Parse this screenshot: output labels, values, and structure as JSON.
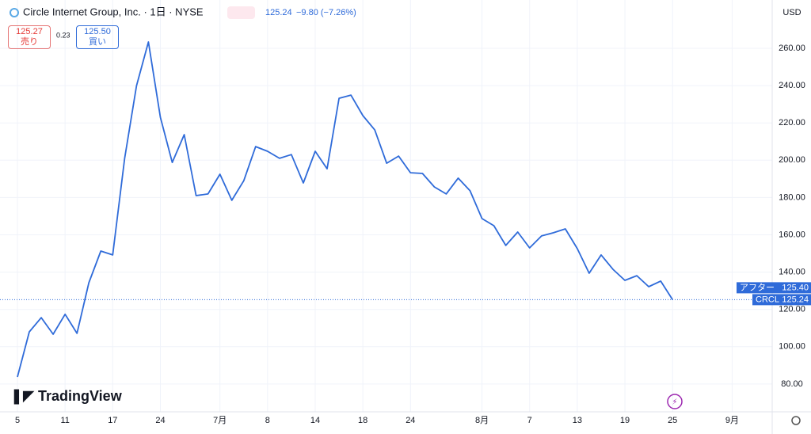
{
  "chart_data": {
    "type": "line",
    "title": "Circle Internet Group, Inc. · 1日 · NYSE",
    "price": "125.24",
    "change": "−9.80 (−7.26%)",
    "bid": "125.27",
    "bid_label": "売り",
    "spread": "0.23",
    "ask": "125.50",
    "ask_label": "買い",
    "currency": "USD",
    "after_label": "アフター",
    "after_value": "125.40",
    "symbol": "CRCL",
    "last_label": "125.24",
    "logo": "TradingView",
    "categories": [
      "5",
      null,
      null,
      null,
      "11",
      null,
      null,
      null,
      "17",
      null,
      null,
      null,
      "24",
      null,
      null,
      null,
      null,
      "7月",
      null,
      null,
      null,
      "8",
      null,
      null,
      null,
      "14",
      null,
      null,
      null,
      "18",
      null,
      null,
      null,
      "24",
      null,
      null,
      null,
      null,
      null,
      "8月",
      null,
      null,
      null,
      "7",
      null,
      null,
      null,
      "13",
      null,
      null,
      null,
      "19",
      null,
      null,
      null,
      "25",
      null,
      null,
      null,
      null,
      "9月"
    ],
    "series": [
      {
        "name": "CRCL",
        "color": "#2f6bd9",
        "values": [
          83.8,
          108,
          115.6,
          106.7,
          117.4,
          107.2,
          134.3,
          151.3,
          149.2,
          201,
          240,
          263.4,
          223,
          198.8,
          213.7,
          181,
          181.9,
          192.5,
          178.5,
          189,
          207.3,
          204.8,
          201,
          203,
          187.8,
          204.8,
          195.4,
          233.2,
          234.9,
          223.9,
          216.2,
          198.4,
          202.2,
          193.3,
          192.9,
          185.7,
          181.9,
          190.4,
          183.6,
          168.7,
          164.9,
          154.3,
          161.5,
          153,
          159.4,
          161.1,
          163.2,
          152.6,
          139.4,
          149.2,
          141.5,
          135.6,
          138.1,
          132.2,
          135.2,
          125.24,
          null,
          null,
          null,
          null,
          null
        ]
      }
    ],
    "ylim": [
      65.1,
      285.9
    ],
    "yticks": [
      {
        "value": 80,
        "label": "80.00"
      },
      {
        "value": 100,
        "label": "100.00"
      },
      {
        "value": 120,
        "label": "120.00"
      },
      {
        "value": 140,
        "label": "140.00"
      },
      {
        "value": 160,
        "label": "160.00"
      },
      {
        "value": 180,
        "label": "180.00"
      },
      {
        "value": 200,
        "label": "200.00"
      },
      {
        "value": 220,
        "label": "220.00"
      },
      {
        "value": 240,
        "label": "240.00"
      },
      {
        "value": 260,
        "label": "260.00"
      }
    ],
    "grid": true
  }
}
